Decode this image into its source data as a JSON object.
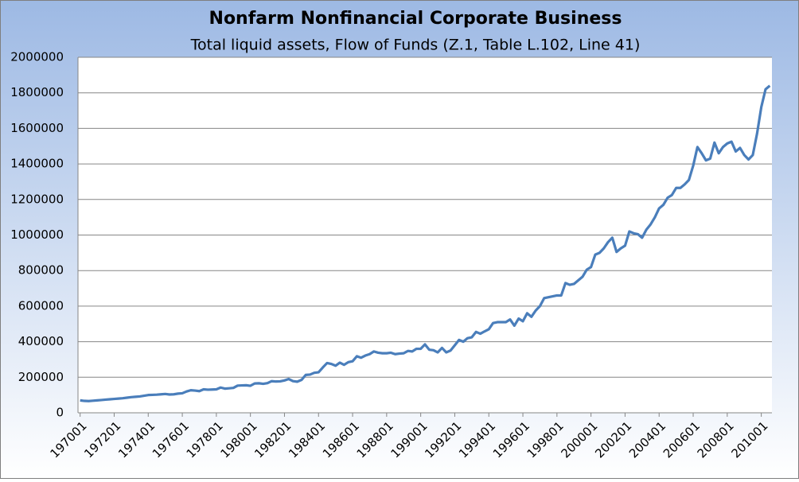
{
  "chart_data": {
    "type": "line",
    "title": "Nonfarm Nonfinancial Corporate Business",
    "subtitle": "Total liquid assets, Flow of Funds (Z.1, Table L.102, Line 41)",
    "categories": [
      "197001",
      null,
      null,
      null,
      null,
      null,
      null,
      null,
      "197201",
      null,
      null,
      null,
      null,
      null,
      null,
      null,
      "197401",
      null,
      null,
      null,
      null,
      null,
      null,
      null,
      "197601",
      null,
      null,
      null,
      null,
      null,
      null,
      null,
      "197801",
      null,
      null,
      null,
      null,
      null,
      null,
      null,
      "198001",
      null,
      null,
      null,
      null,
      null,
      null,
      null,
      "198201",
      null,
      null,
      null,
      null,
      null,
      null,
      null,
      "198401",
      null,
      null,
      null,
      null,
      null,
      null,
      null,
      "198601",
      null,
      null,
      null,
      null,
      null,
      null,
      null,
      "198801",
      null,
      null,
      null,
      null,
      null,
      null,
      null,
      "199001",
      null,
      null,
      null,
      null,
      null,
      null,
      null,
      "199201",
      null,
      null,
      null,
      null,
      null,
      null,
      null,
      "199401",
      null,
      null,
      null,
      null,
      null,
      null,
      null,
      "199601",
      null,
      null,
      null,
      null,
      null,
      null,
      null,
      "199801",
      null,
      null,
      null,
      null,
      null,
      null,
      null,
      "200001",
      null,
      null,
      null,
      null,
      null,
      null,
      null,
      "200201",
      null,
      null,
      null,
      null,
      null,
      null,
      null,
      "200401",
      null,
      null,
      null,
      null,
      null,
      null,
      null,
      "200601",
      null,
      null,
      null,
      null,
      null,
      null,
      null,
      "200801",
      null,
      null,
      null,
      null,
      null,
      null,
      null,
      "201001",
      null,
      null
    ],
    "values": [
      70000,
      67000,
      66000,
      68000,
      70000,
      72000,
      74000,
      76000,
      78000,
      80000,
      82000,
      85000,
      88000,
      90000,
      92000,
      96000,
      100000,
      101000,
      102000,
      104000,
      106000,
      103000,
      104000,
      108000,
      110000,
      120000,
      127000,
      125000,
      122000,
      132000,
      130000,
      131000,
      132000,
      142000,
      136000,
      138000,
      140000,
      153000,
      154000,
      155000,
      152000,
      165000,
      166000,
      163000,
      167000,
      178000,
      176000,
      177000,
      182000,
      190000,
      178000,
      175000,
      185000,
      213000,
      215000,
      225000,
      228000,
      255000,
      280000,
      275000,
      265000,
      282000,
      270000,
      285000,
      290000,
      318000,
      310000,
      322000,
      330000,
      345000,
      338000,
      335000,
      335000,
      338000,
      330000,
      333000,
      335000,
      348000,
      345000,
      360000,
      360000,
      385000,
      355000,
      352000,
      340000,
      365000,
      340000,
      350000,
      380000,
      410000,
      400000,
      420000,
      425000,
      455000,
      445000,
      458000,
      470000,
      505000,
      510000,
      510000,
      510000,
      525000,
      490000,
      530000,
      515000,
      560000,
      540000,
      575000,
      600000,
      645000,
      650000,
      655000,
      660000,
      660000,
      730000,
      720000,
      725000,
      745000,
      765000,
      805000,
      820000,
      890000,
      900000,
      925000,
      960000,
      985000,
      905000,
      925000,
      940000,
      1020000,
      1010000,
      1005000,
      985000,
      1030000,
      1060000,
      1100000,
      1150000,
      1170000,
      1210000,
      1225000,
      1265000,
      1265000,
      1285000,
      1310000,
      1390000,
      1495000,
      1460000,
      1420000,
      1430000,
      1520000,
      1460000,
      1495000,
      1515000,
      1525000,
      1470000,
      1490000,
      1450000,
      1425000,
      1450000,
      1570000,
      1720000,
      1820000,
      1840000
    ],
    "color": "#4a7ebb",
    "ylim": [
      0,
      2000000
    ],
    "yticks": [
      0,
      200000,
      400000,
      600000,
      800000,
      1000000,
      1200000,
      1400000,
      1600000,
      1800000,
      2000000
    ],
    "grid": true
  }
}
